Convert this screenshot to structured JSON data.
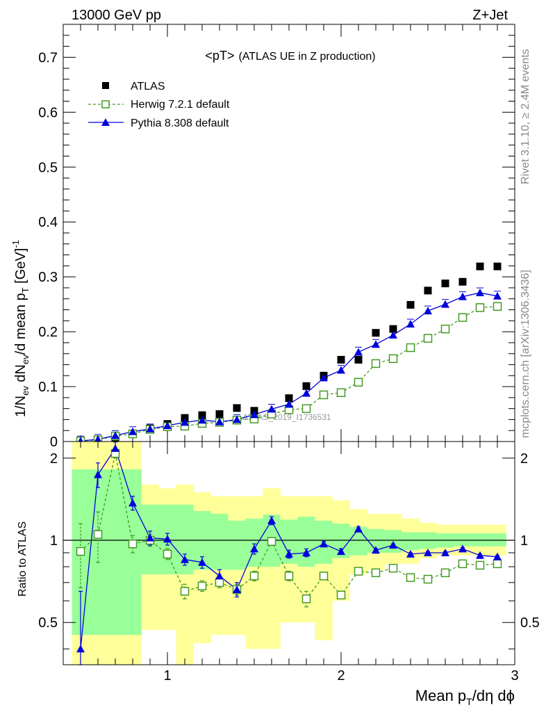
{
  "header": {
    "energy_label": "13000 GeV pp",
    "process_label": "Z+Jet"
  },
  "side_labels": {
    "rivet": "Rivet 3.1.10, ≥ 2.4M events",
    "mcplots": "mcplots.cern.ch [arXiv:1306.3436]"
  },
  "watermark": "ATLAS_2019_I1736531",
  "colors": {
    "atlas": "#000000",
    "herwig": "#449922",
    "pythia": "#0000dd",
    "band_green": "#99ff99",
    "band_yellow": "#ffff99"
  },
  "chart_data": [
    {
      "type": "scatter",
      "title": "<pT> (ATLAS UE in Z production)",
      "title_main": "<pT>",
      "title_sub": "(ATLAS UE in Z production)",
      "ylabel": "1/N_ev dN_ev/d mean p_T [GeV]^-1",
      "xlim": [
        0.4,
        3.0
      ],
      "ylim": [
        0,
        0.76
      ],
      "yticks": [
        0,
        0.1,
        0.2,
        0.3,
        0.4,
        0.5,
        0.6,
        0.7
      ],
      "ytick_labels": [
        "0",
        "0.1",
        "0.2",
        "0.3",
        "0.4",
        "0.5",
        "0.6",
        "0.7"
      ],
      "legend_position": "top-left",
      "x": [
        0.5,
        0.6,
        0.7,
        0.8,
        0.9,
        1.0,
        1.1,
        1.2,
        1.3,
        1.4,
        1.5,
        1.6,
        1.7,
        1.8,
        1.9,
        2.0,
        2.1,
        2.2,
        2.3,
        2.4,
        2.5,
        2.6,
        2.7,
        2.8,
        2.9
      ],
      "series": [
        {
          "name": "ATLAS",
          "marker": "filled-square",
          "values": [
            0.001,
            0.002,
            0.005,
            0.014,
            0.024,
            0.032,
            0.043,
            0.048,
            0.05,
            0.061,
            0.056,
            0.051,
            0.079,
            0.101,
            0.12,
            0.149,
            0.149,
            0.198,
            0.205,
            0.249,
            0.275,
            0.288,
            0.291,
            0.319,
            0.319
          ]
        },
        {
          "name": "Herwig 7.2.1 default",
          "marker": "open-square",
          "line": "dashed",
          "values": [
            0.001,
            0.003,
            0.01,
            0.014,
            0.022,
            0.027,
            0.028,
            0.033,
            0.035,
            0.039,
            0.041,
            0.05,
            0.058,
            0.06,
            0.085,
            0.089,
            0.108,
            0.142,
            0.151,
            0.171,
            0.188,
            0.205,
            0.226,
            0.244,
            0.246
          ]
        },
        {
          "name": "Pythia 8.308 default",
          "marker": "filled-triangle",
          "line": "solid",
          "values": [
            0.001,
            0.004,
            0.011,
            0.018,
            0.023,
            0.029,
            0.035,
            0.039,
            0.036,
            0.04,
            0.049,
            0.059,
            0.068,
            0.088,
            0.116,
            0.13,
            0.163,
            0.177,
            0.194,
            0.214,
            0.238,
            0.25,
            0.264,
            0.271,
            0.265
          ]
        }
      ]
    },
    {
      "type": "scatter",
      "ylabel": "Ratio to ATLAS",
      "xlabel": "Mean p_T/dη dϕ",
      "xlim": [
        0.4,
        3.0
      ],
      "ylim": [
        0.35,
        2.3
      ],
      "y_scale": "log",
      "xticks": [
        1,
        2,
        3
      ],
      "xtick_labels": [
        "1",
        "2",
        "3"
      ],
      "yticks": [
        0.5,
        1,
        2
      ],
      "ytick_labels": [
        "0.5",
        "1",
        "2"
      ],
      "reference_line": 1,
      "x": [
        0.5,
        0.6,
        0.7,
        0.8,
        0.9,
        1.0,
        1.1,
        1.2,
        1.3,
        1.4,
        1.5,
        1.6,
        1.7,
        1.8,
        1.9,
        2.0,
        2.1,
        2.2,
        2.3,
        2.4,
        2.5,
        2.6,
        2.7,
        2.8,
        2.9
      ],
      "series": [
        {
          "name": "Herwig 7.2.1 default",
          "marker": "open-square",
          "line": "dashed",
          "values": [
            0.91,
            1.05,
            2.08,
            0.97,
            1.0,
            0.89,
            0.65,
            0.68,
            0.7,
            0.66,
            0.74,
            0.99,
            0.74,
            0.61,
            0.74,
            0.63,
            0.77,
            0.76,
            0.79,
            0.73,
            0.72,
            0.76,
            0.82,
            0.81,
            0.82
          ],
          "errors": [
            0.24,
            0.22,
            0.08,
            0.07,
            0.05,
            0.04,
            0.04,
            0.03,
            0.03,
            0.03,
            0.03,
            0.03,
            0.03,
            0.04,
            0.02,
            0.02,
            0.02,
            0.01,
            0.01,
            0.01,
            0.01,
            0.01,
            0.01,
            0.01,
            0.01
          ]
        },
        {
          "name": "Pythia 8.308 default",
          "marker": "filled-triangle",
          "line": "solid",
          "values": [
            0.4,
            1.74,
            2.17,
            1.37,
            1.02,
            1.01,
            0.85,
            0.83,
            0.74,
            0.66,
            0.93,
            1.18,
            0.89,
            0.9,
            0.97,
            0.91,
            1.1,
            0.92,
            0.96,
            0.89,
            0.9,
            0.9,
            0.93,
            0.88,
            0.87
          ],
          "errors": [
            0.25,
            0.18,
            0.12,
            0.08,
            0.06,
            0.05,
            0.04,
            0.04,
            0.04,
            0.04,
            0.04,
            0.04,
            0.03,
            0.03,
            0.02,
            0.02,
            0.02,
            0.01,
            0.01,
            0.01,
            0.01,
            0.01,
            0.01,
            0.01,
            0.01
          ]
        }
      ],
      "bands": {
        "green": [
          [
            0.45,
            1.82
          ],
          [
            0.45,
            1.82
          ],
          [
            0.45,
            1.82
          ],
          [
            0.45,
            1.82
          ],
          [
            0.75,
            1.35
          ],
          [
            0.75,
            1.35
          ],
          [
            0.75,
            1.35
          ],
          [
            0.78,
            1.28
          ],
          [
            0.78,
            1.25
          ],
          [
            0.78,
            1.18
          ],
          [
            0.8,
            1.2
          ],
          [
            0.8,
            1.24
          ],
          [
            0.82,
            1.19
          ],
          [
            0.8,
            1.22
          ],
          [
            0.82,
            1.18
          ],
          [
            0.86,
            1.15
          ],
          [
            0.88,
            1.12
          ],
          [
            0.9,
            1.1
          ],
          [
            0.9,
            1.09
          ],
          [
            0.92,
            1.07
          ],
          [
            0.93,
            1.07
          ],
          [
            0.94,
            1.06
          ],
          [
            0.95,
            1.06
          ],
          [
            0.95,
            1.06
          ],
          [
            0.95,
            1.06
          ]
        ],
        "yellow": [
          [
            0.35,
            2.3
          ],
          [
            0.35,
            2.3
          ],
          [
            0.35,
            2.3
          ],
          [
            0.35,
            2.3
          ],
          [
            0.47,
            1.6
          ],
          [
            0.47,
            1.55
          ],
          [
            0.35,
            1.6
          ],
          [
            0.42,
            1.5
          ],
          [
            0.45,
            1.45
          ],
          [
            0.45,
            1.45
          ],
          [
            0.4,
            1.45
          ],
          [
            0.4,
            1.55
          ],
          [
            0.5,
            1.45
          ],
          [
            0.5,
            1.45
          ],
          [
            0.43,
            1.45
          ],
          [
            0.6,
            1.4
          ],
          [
            0.75,
            1.3
          ],
          [
            0.78,
            1.25
          ],
          [
            0.82,
            1.25
          ],
          [
            0.82,
            1.2
          ],
          [
            0.86,
            1.16
          ],
          [
            0.88,
            1.14
          ],
          [
            0.88,
            1.14
          ],
          [
            0.88,
            1.14
          ],
          [
            0.88,
            1.14
          ]
        ]
      }
    }
  ]
}
